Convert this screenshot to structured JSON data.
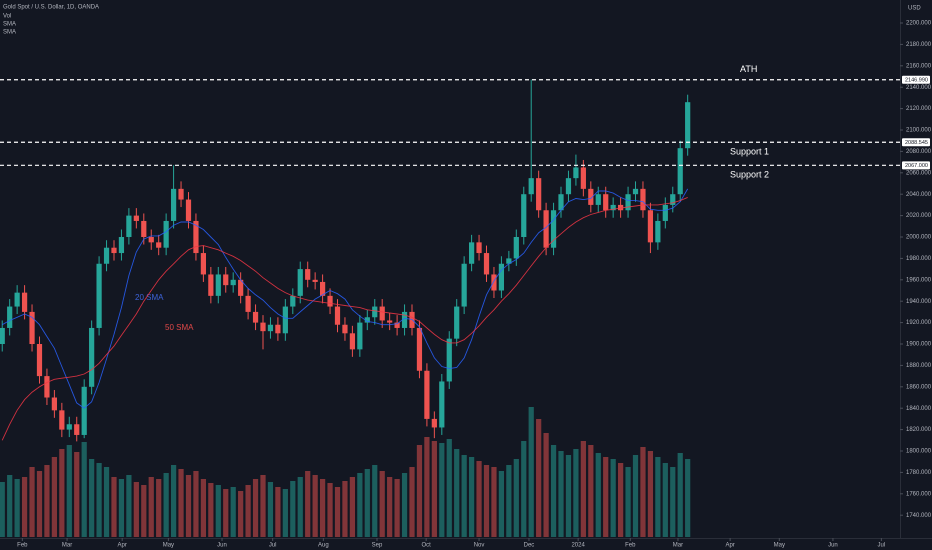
{
  "chart_data": {
    "type": "candlestick",
    "title": "Gold Spot / U.S. Dollar, 1D, OANDA",
    "legend": [
      "Vol",
      "SMA",
      "SMA"
    ],
    "currency": "USD",
    "up_color": "#26a69a",
    "down_color": "#ef5350",
    "open": [
      1900,
      1915,
      1935,
      1948,
      1930,
      1900,
      1870,
      1850,
      1838,
      1820,
      1825,
      1815,
      1860,
      1915,
      1975,
      1990,
      1985,
      2000,
      2020,
      2015,
      2000,
      1995,
      1990,
      2015,
      2045,
      2035,
      2015,
      1985,
      1965,
      1945,
      1965,
      1955,
      1960,
      1945,
      1930,
      1920,
      1912,
      1918,
      1910,
      1935,
      1945,
      1970,
      1960,
      1958,
      1945,
      1935,
      1918,
      1910,
      1895,
      1920,
      1925,
      1935,
      1922,
      1920,
      1915,
      1930,
      1915,
      1875,
      1830,
      1822,
      1865,
      1905,
      1935,
      1975,
      1995,
      1985,
      1965,
      1950,
      1975,
      1980,
      2000,
      2040,
      2055,
      2025,
      1990,
      2025,
      2040,
      2055,
      2065,
      2045,
      2030,
      2040,
      2025,
      2030,
      2025,
      2040,
      2045,
      2025,
      1995,
      2015,
      2030,
      2040,
      2083
    ],
    "high": [
      1922,
      1942,
      1955,
      1955,
      1937,
      1907,
      1877,
      1857,
      1845,
      1832,
      1832,
      1867,
      1922,
      1982,
      1997,
      1997,
      2007,
      2027,
      2027,
      2022,
      2007,
      2002,
      2022,
      2067,
      2052,
      2042,
      2022,
      1992,
      1972,
      1972,
      1972,
      1967,
      1967,
      1952,
      1937,
      1927,
      1925,
      1925,
      1942,
      1952,
      1977,
      1977,
      1967,
      1965,
      1952,
      1942,
      1925,
      1917,
      1927,
      1932,
      1942,
      1942,
      1929,
      1927,
      1937,
      1937,
      1922,
      1882,
      1837,
      1872,
      1912,
      1942,
      1982,
      2002,
      2002,
      1992,
      1972,
      1982,
      1987,
      2007,
      2047,
      2147,
      2062,
      2032,
      2032,
      2047,
      2062,
      2077,
      2072,
      2052,
      2047,
      2047,
      2037,
      2037,
      2047,
      2052,
      2052,
      2032,
      2022,
      2037,
      2047,
      2090,
      2133
    ],
    "low": [
      1893,
      1908,
      1928,
      1923,
      1893,
      1863,
      1843,
      1831,
      1813,
      1813,
      1809,
      1812,
      1853,
      1908,
      1968,
      1978,
      1978,
      1993,
      2008,
      1993,
      1988,
      1983,
      1983,
      2008,
      2028,
      2008,
      1978,
      1958,
      1938,
      1938,
      1948,
      1948,
      1938,
      1923,
      1913,
      1895,
      1905,
      1903,
      1903,
      1928,
      1938,
      1953,
      1951,
      1938,
      1928,
      1911,
      1903,
      1888,
      1888,
      1913,
      1918,
      1915,
      1913,
      1908,
      1908,
      1908,
      1868,
      1823,
      1812,
      1815,
      1858,
      1898,
      1928,
      1968,
      1978,
      1958,
      1943,
      1943,
      1968,
      1973,
      1993,
      2033,
      2018,
      1983,
      1983,
      2018,
      2033,
      2048,
      2038,
      2023,
      2023,
      2018,
      2018,
      2018,
      2018,
      2033,
      2018,
      1985,
      1988,
      2008,
      2023,
      2033,
      2076
    ],
    "close": [
      1915,
      1935,
      1948,
      1930,
      1900,
      1870,
      1850,
      1838,
      1820,
      1825,
      1815,
      1860,
      1915,
      1975,
      1990,
      1985,
      2000,
      2020,
      2015,
      2000,
      1995,
      1990,
      2015,
      2045,
      2035,
      2015,
      1985,
      1965,
      1945,
      1965,
      1955,
      1960,
      1945,
      1930,
      1920,
      1912,
      1918,
      1910,
      1935,
      1945,
      1970,
      1960,
      1958,
      1945,
      1935,
      1918,
      1910,
      1895,
      1920,
      1925,
      1935,
      1922,
      1920,
      1915,
      1930,
      1915,
      1875,
      1830,
      1822,
      1865,
      1905,
      1935,
      1975,
      1995,
      1985,
      1965,
      1950,
      1975,
      1980,
      2000,
      2040,
      2055,
      2025,
      1990,
      2025,
      2040,
      2055,
      2065,
      2045,
      2030,
      2040,
      2025,
      2030,
      2025,
      2040,
      2045,
      2025,
      1995,
      2015,
      2030,
      2040,
      2083,
      2126
    ],
    "volume": [
      55,
      62,
      58,
      60,
      70,
      66,
      72,
      80,
      88,
      92,
      85,
      95,
      78,
      74,
      70,
      60,
      58,
      62,
      55,
      52,
      60,
      58,
      64,
      72,
      68,
      62,
      66,
      58,
      54,
      52,
      48,
      50,
      46,
      52,
      58,
      62,
      55,
      50,
      48,
      56,
      60,
      66,
      62,
      58,
      54,
      50,
      56,
      60,
      64,
      68,
      72,
      66,
      60,
      58,
      64,
      70,
      92,
      100,
      96,
      94,
      98,
      88,
      82,
      80,
      76,
      72,
      70,
      66,
      72,
      78,
      96,
      130,
      118,
      104,
      92,
      86,
      82,
      88,
      96,
      92,
      84,
      80,
      78,
      74,
      70,
      82,
      90,
      86,
      80,
      74,
      70,
      84,
      78
    ],
    "series": [
      {
        "name": "20 SMA",
        "color": "#2962ff",
        "values": [
          1918,
          1922,
          1925,
          1928,
          1925,
          1918,
          1907,
          1896,
          1879,
          1862,
          1845,
          1840,
          1846,
          1864,
          1886,
          1909,
          1934,
          1964,
          1986,
          1998,
          2001,
          2001,
          2005,
          2011,
          2014,
          2014,
          2011,
          2007,
          2000,
          1993,
          1981,
          1970,
          1960,
          1952,
          1946,
          1941,
          1934,
          1928,
          1924,
          1924,
          1930,
          1936,
          1942,
          1946,
          1950,
          1947,
          1942,
          1932,
          1926,
          1921,
          1920,
          1918,
          1918,
          1919,
          1924,
          1923,
          1916,
          1901,
          1887,
          1879,
          1877,
          1878,
          1887,
          1904,
          1926,
          1946,
          1959,
          1969,
          1975,
          1979,
          1985,
          1995,
          2004,
          2009,
          2016,
          2025,
          2033,
          2036,
          2035,
          2036,
          2043,
          2043,
          2041,
          2037,
          2034,
          2034,
          2033,
          2026,
          2025,
          2025,
          2027,
          2033,
          2045
        ]
      },
      {
        "name": "50 SMA",
        "color": "#f23645",
        "values": [
          1810,
          1825,
          1838,
          1848,
          1855,
          1860,
          1864,
          1867,
          1868,
          1869,
          1870,
          1872,
          1876,
          1882,
          1890,
          1898,
          1908,
          1918,
          1928,
          1940,
          1950,
          1960,
          1968,
          1975,
          1982,
          1988,
          1991,
          1992,
          1990,
          1988,
          1985,
          1982,
          1978,
          1973,
          1968,
          1962,
          1957,
          1952,
          1948,
          1945,
          1943,
          1941,
          1940,
          1939,
          1938,
          1937,
          1936,
          1935,
          1934,
          1932,
          1931,
          1930,
          1929,
          1928,
          1927,
          1925,
          1921,
          1915,
          1909,
          1904,
          1901,
          1901,
          1904,
          1910,
          1917,
          1925,
          1932,
          1940,
          1947,
          1955,
          1964,
          1973,
          1982,
          1990,
          1997,
          2003,
          2009,
          2014,
          2018,
          2021,
          2023,
          2025,
          2026,
          2027,
          2028,
          2029,
          2030,
          2030,
          2030,
          2031,
          2032,
          2034,
          2037
        ]
      }
    ],
    "levels": [
      {
        "name": "ATH",
        "value": 2146.99,
        "label": "2146.990"
      },
      {
        "name": "Support 1",
        "value": 2088.545,
        "label": "2088.545"
      },
      {
        "name": "Support 2",
        "value": 2067,
        "label": "2067.000"
      }
    ],
    "xlim": [
      -0.3,
      120.5
    ],
    "xticks": [
      {
        "value": 2.7,
        "label": "Feb"
      },
      {
        "value": 8.7,
        "label": "Mar"
      },
      {
        "value": 16.1,
        "label": "Apr"
      },
      {
        "value": 22.3,
        "label": "May"
      },
      {
        "value": 29.5,
        "label": "Jun"
      },
      {
        "value": 36.3,
        "label": "Jul"
      },
      {
        "value": 43.1,
        "label": "Aug"
      },
      {
        "value": 50.3,
        "label": "Sep"
      },
      {
        "value": 56.9,
        "label": "Oct"
      },
      {
        "value": 64.0,
        "label": "Nov"
      },
      {
        "value": 70.7,
        "label": "Dec"
      },
      {
        "value": 77.3,
        "label": "2024"
      },
      {
        "value": 84.3,
        "label": "Feb"
      },
      {
        "value": 90.7,
        "label": "Mar"
      },
      {
        "value": 97.7,
        "label": "Apr"
      },
      {
        "value": 104.3,
        "label": "May"
      },
      {
        "value": 111.5,
        "label": "Jun"
      },
      {
        "value": 118.0,
        "label": "Jul"
      }
    ],
    "ylim": [
      1721.5,
      2221.5
    ],
    "yticks": [
      {
        "value": 1740,
        "label": "1740.000"
      },
      {
        "value": 1760,
        "label": "1760.000"
      },
      {
        "value": 1780,
        "label": "1780.000"
      },
      {
        "value": 1800,
        "label": "1800.000"
      },
      {
        "value": 1820,
        "label": "1820.000"
      },
      {
        "value": 1840,
        "label": "1840.000"
      },
      {
        "value": 1860,
        "label": "1860.000"
      },
      {
        "value": 1880,
        "label": "1880.000"
      },
      {
        "value": 1900,
        "label": "1900.000"
      },
      {
        "value": 1920,
        "label": "1920.000"
      },
      {
        "value": 1940,
        "label": "1940.000"
      },
      {
        "value": 1960,
        "label": "1960.000"
      },
      {
        "value": 1980,
        "label": "1980.000"
      },
      {
        "value": 2000,
        "label": "2000.000"
      },
      {
        "value": 2020,
        "label": "2020.000"
      },
      {
        "value": 2040,
        "label": "2040.000"
      },
      {
        "value": 2060,
        "label": "2060.000"
      },
      {
        "value": 2080,
        "label": "2080.000"
      },
      {
        "value": 2100,
        "label": "2100.000"
      },
      {
        "value": 2120,
        "label": "2120.000"
      },
      {
        "value": 2140,
        "label": "2140.000"
      },
      {
        "value": 2160,
        "label": "2160.000"
      },
      {
        "value": 2180,
        "label": "2180.000"
      },
      {
        "value": 2200,
        "label": "2200.000"
      }
    ],
    "grid": false
  }
}
